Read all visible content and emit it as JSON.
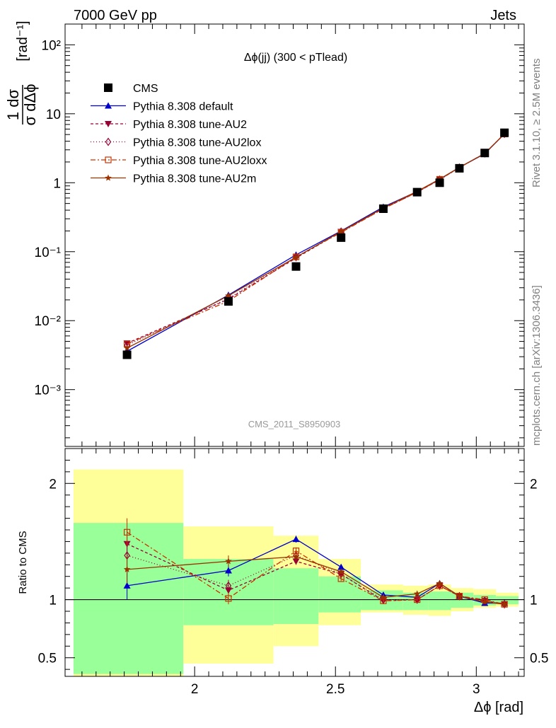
{
  "header": {
    "left": "7000 GeV pp",
    "right": "Jets"
  },
  "side_labels": {
    "rivet": "Rivet 3.1.10, ≥ 2.5M events",
    "mcplots": "mcplots.cern.ch [arXiv:1306.3436]"
  },
  "colors": {
    "data": "#000000",
    "default": "#0000cc",
    "au2": "#990033",
    "au2lox": "#990033",
    "au2loxx": "#cc3300",
    "au2m": "#993300",
    "band_inner": "#99ff99",
    "band_outer": "#ffff99"
  },
  "chart_data": [
    {
      "type": "line",
      "title": "Δϕ(jj) (300 < pTlead)",
      "watermark": "CMS_2011_S8950903",
      "ylabel": "1/σ dσ/dΔϕ [rad⁻¹]",
      "yscale": "log",
      "xlim": [
        1.54,
        3.17
      ],
      "ylim": [
        0.00015,
        200
      ],
      "y_tick_labels": [
        "10⁻³",
        "10⁻²",
        "10⁻¹",
        "1",
        "10",
        "10²"
      ],
      "legend_position": "top-left",
      "x": [
        1.76,
        2.12,
        2.36,
        2.52,
        2.67,
        2.79,
        2.87,
        2.94,
        3.03,
        3.1
      ],
      "series": [
        {
          "name": "CMS",
          "key": "data",
          "marker": "square",
          "dash": "none",
          "values": [
            0.0032,
            0.019,
            0.061,
            0.16,
            0.42,
            0.73,
            1.0,
            1.62,
            2.7,
            5.3
          ]
        },
        {
          "name": "Pythia 8.308 default",
          "key": "default",
          "marker": "triangle",
          "dash": "none",
          "values": [
            0.0036,
            0.0235,
            0.09,
            0.2,
            0.445,
            0.745,
            1.12,
            1.67,
            2.63,
            5.1
          ]
        },
        {
          "name": "Pythia 8.308 tune-AU2",
          "key": "au2",
          "marker": "triangle-down",
          "dash": "4,3",
          "values": [
            0.0047,
            0.0205,
            0.081,
            0.195,
            0.42,
            0.73,
            1.11,
            1.66,
            2.66,
            5.1
          ]
        },
        {
          "name": "Pythia 8.308 tune-AU2lox",
          "key": "au2lox",
          "marker": "diamond",
          "dash": "1,3",
          "values": [
            0.0044,
            0.021,
            0.084,
            0.195,
            0.42,
            0.73,
            1.11,
            1.66,
            2.66,
            5.12
          ]
        },
        {
          "name": "Pythia 8.308 tune-AU2loxx",
          "key": "au2loxx",
          "marker": "open-square",
          "dash": "7,3,2,3",
          "values": [
            0.0046,
            0.0192,
            0.084,
            0.19,
            0.42,
            0.73,
            1.12,
            1.66,
            2.68,
            5.1
          ]
        },
        {
          "name": "Pythia 8.308 tune-AU2m",
          "key": "au2m",
          "marker": "star",
          "dash": "none",
          "values": [
            0.004,
            0.023,
            0.083,
            0.197,
            0.43,
            0.75,
            1.13,
            1.67,
            2.66,
            5.12
          ]
        }
      ]
    },
    {
      "type": "line",
      "ylabel": "Ratio to CMS",
      "xlabel": "Δϕ [rad]",
      "xlim": [
        1.54,
        3.17
      ],
      "ylim": [
        0.34,
        2.3
      ],
      "x_ticks": [
        2,
        2.5,
        3
      ],
      "x_tick_labels": [
        "2",
        "2.5",
        "3"
      ],
      "y_ticks": [
        0.5,
        1,
        2
      ],
      "y_tick_labels": [
        "0.5",
        "1",
        "2"
      ],
      "bins": [
        {
          "lo": 1.57,
          "hi": 1.96,
          "inner": [
            0.36,
            1.66
          ],
          "outer": [
            0.33,
            2.12
          ]
        },
        {
          "lo": 1.96,
          "hi": 2.28,
          "inner": [
            0.78,
            1.35
          ],
          "outer": [
            0.45,
            1.63
          ]
        },
        {
          "lo": 2.28,
          "hi": 2.44,
          "inner": [
            0.79,
            1.27
          ],
          "outer": [
            0.6,
            1.55
          ]
        },
        {
          "lo": 2.44,
          "hi": 2.59,
          "inner": [
            0.89,
            1.2
          ],
          "outer": [
            0.78,
            1.35
          ]
        },
        {
          "lo": 2.59,
          "hi": 2.74,
          "inner": [
            0.91,
            1.08
          ],
          "outer": [
            0.89,
            1.13
          ]
        },
        {
          "lo": 2.74,
          "hi": 2.83,
          "inner": [
            0.91,
            1.06
          ],
          "outer": [
            0.87,
            1.12
          ]
        },
        {
          "lo": 2.83,
          "hi": 2.91,
          "inner": [
            0.91,
            1.07
          ],
          "outer": [
            0.86,
            1.13
          ]
        },
        {
          "lo": 2.91,
          "hi": 2.99,
          "inner": [
            0.93,
            1.06
          ],
          "outer": [
            0.9,
            1.1
          ]
        },
        {
          "lo": 2.99,
          "hi": 3.07,
          "inner": [
            0.95,
            1.04
          ],
          "outer": [
            0.93,
            1.09
          ]
        },
        {
          "lo": 3.07,
          "hi": 3.15,
          "inner": [
            0.96,
            1.03
          ],
          "outer": [
            0.94,
            1.06
          ]
        }
      ],
      "series": [
        {
          "name": "Pythia 8.308 default",
          "key": "default",
          "values": [
            1.12,
            1.25,
            1.52,
            1.28,
            1.04,
            1.02,
            1.14,
            1.03,
            0.97,
            0.97
          ]
        },
        {
          "name": "Pythia 8.308 tune-AU2",
          "key": "au2",
          "values": [
            1.48,
            1.08,
            1.33,
            1.22,
            0.99,
            1.0,
            1.12,
            1.03,
            0.99,
            0.96
          ]
        },
        {
          "name": "Pythia 8.308 tune-AU2lox",
          "key": "au2lox",
          "values": [
            1.38,
            1.12,
            1.38,
            1.22,
            1.0,
            1.0,
            1.12,
            1.03,
            0.99,
            0.96
          ]
        },
        {
          "name": "Pythia 8.308 tune-AU2loxx",
          "key": "au2loxx",
          "values": [
            1.58,
            1.01,
            1.42,
            1.18,
            0.99,
            1.0,
            1.12,
            1.03,
            1.0,
            0.96
          ]
        },
        {
          "name": "Pythia 8.308 tune-AU2m",
          "key": "au2m",
          "values": [
            1.26,
            1.33,
            1.37,
            1.24,
            1.02,
            1.05,
            1.14,
            1.03,
            0.98,
            0.96
          ]
        }
      ],
      "errors": [
        0.12,
        0.05,
        0.03,
        0.02,
        0.015,
        0.015,
        0.01,
        0.01,
        0.01,
        0.01
      ]
    }
  ]
}
